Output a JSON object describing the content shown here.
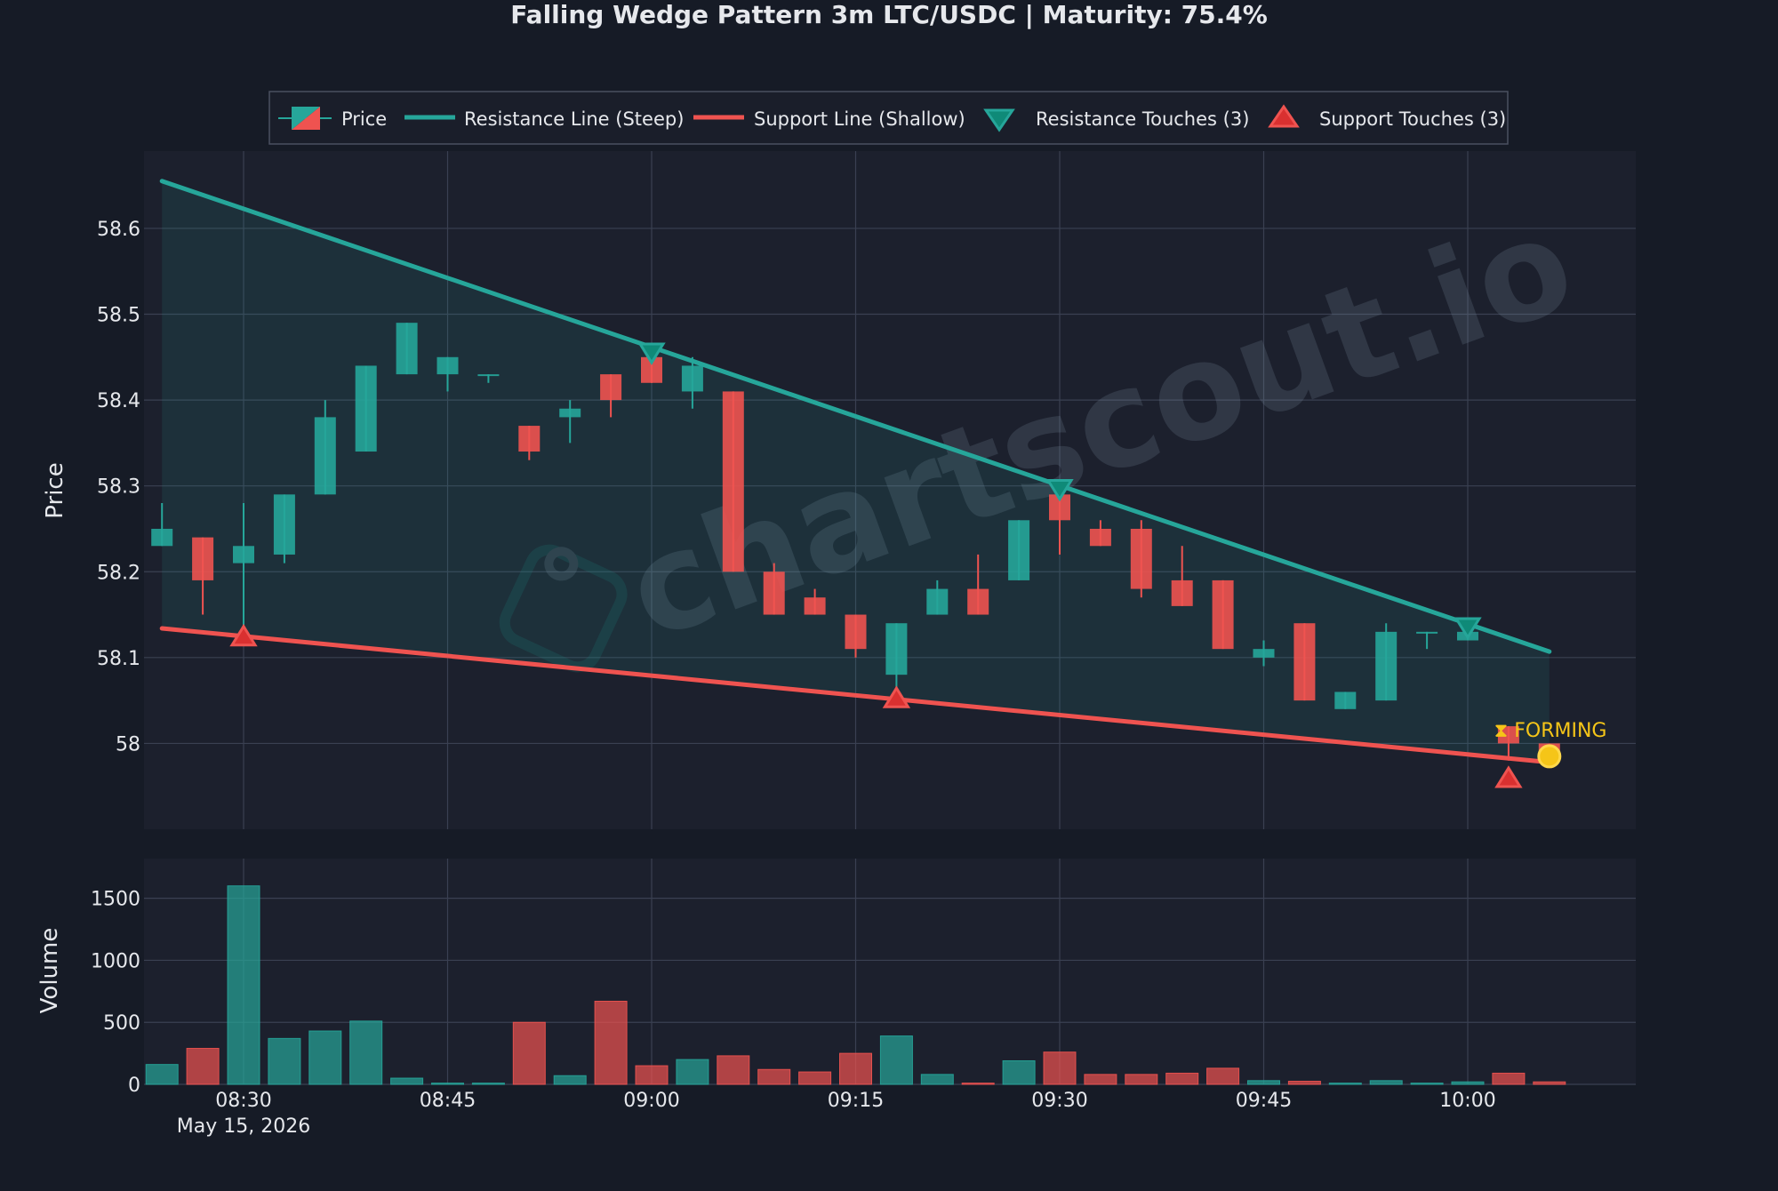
{
  "title": "Falling Wedge Pattern 3m LTC/USDC | Maturity: 75.4%",
  "watermark": "chartscout.io",
  "status_label": "⧗ FORMING",
  "colors": {
    "background": "#161b26",
    "panel": "#1c202d",
    "bull": "#26a69a",
    "bear": "#ef5350",
    "resistance": "#26a69a",
    "support": "#ef5350",
    "marker": "#f5c518",
    "text": "#e6e8ec",
    "grid": "#3a4052"
  },
  "legend": {
    "placement": "top-center",
    "items": [
      {
        "label": "Price",
        "icon": "candlestick-icon"
      },
      {
        "label": "Resistance Line (Steep)",
        "icon": "teal-line-icon"
      },
      {
        "label": "Support Line (Shallow)",
        "icon": "red-line-icon"
      },
      {
        "label": "Resistance Touches (3)",
        "icon": "down-triangle-icon"
      },
      {
        "label": "Support Touches (3)",
        "icon": "up-triangle-icon"
      }
    ]
  },
  "chart_data": [
    {
      "type": "candlestick",
      "title": "Falling Wedge Pattern 3m LTC/USDC | Maturity: 75.4%",
      "ylabel": "Price",
      "ylim": [
        57.9,
        58.69
      ],
      "yticks": [
        {
          "value": 58.6,
          "label": "58.6"
        },
        {
          "value": 58.5,
          "label": "58.5"
        },
        {
          "value": 58.4,
          "label": "58.4"
        },
        {
          "value": 58.3,
          "label": "58.3"
        },
        {
          "value": 58.2,
          "label": "58.2"
        },
        {
          "value": 58.1,
          "label": "58.1"
        },
        {
          "value": 58.0,
          "label": "58"
        }
      ],
      "grid": true,
      "candles": [
        {
          "time": "08:24",
          "open": 58.23,
          "high": 58.28,
          "low": 58.23,
          "close": 58.25
        },
        {
          "time": "08:27",
          "open": 58.24,
          "high": 58.24,
          "low": 58.15,
          "close": 58.19
        },
        {
          "time": "08:30",
          "open": 58.21,
          "high": 58.28,
          "low": 58.12,
          "close": 58.23
        },
        {
          "time": "08:33",
          "open": 58.22,
          "high": 58.29,
          "low": 58.21,
          "close": 58.29
        },
        {
          "time": "08:36",
          "open": 58.29,
          "high": 58.4,
          "low": 58.29,
          "close": 58.38
        },
        {
          "time": "08:39",
          "open": 58.34,
          "high": 58.44,
          "low": 58.34,
          "close": 58.44
        },
        {
          "time": "08:42",
          "open": 58.43,
          "high": 58.49,
          "low": 58.43,
          "close": 58.49
        },
        {
          "time": "08:45",
          "open": 58.43,
          "high": 58.45,
          "low": 58.41,
          "close": 58.45
        },
        {
          "time": "08:48",
          "open": 58.43,
          "high": 58.43,
          "low": 58.42,
          "close": 58.43
        },
        {
          "time": "08:51",
          "open": 58.37,
          "high": 58.37,
          "low": 58.33,
          "close": 58.34
        },
        {
          "time": "08:54",
          "open": 58.38,
          "high": 58.4,
          "low": 58.35,
          "close": 58.39
        },
        {
          "time": "08:57",
          "open": 58.43,
          "high": 58.43,
          "low": 58.38,
          "close": 58.4
        },
        {
          "time": "09:00",
          "open": 58.45,
          "high": 58.45,
          "low": 58.42,
          "close": 58.42
        },
        {
          "time": "09:03",
          "open": 58.41,
          "high": 58.45,
          "low": 58.39,
          "close": 58.44
        },
        {
          "time": "09:06",
          "open": 58.41,
          "high": 58.41,
          "low": 58.2,
          "close": 58.2
        },
        {
          "time": "09:09",
          "open": 58.2,
          "high": 58.21,
          "low": 58.15,
          "close": 58.15
        },
        {
          "time": "09:12",
          "open": 58.17,
          "high": 58.18,
          "low": 58.15,
          "close": 58.15
        },
        {
          "time": "09:15",
          "open": 58.15,
          "high": 58.15,
          "low": 58.1,
          "close": 58.11
        },
        {
          "time": "09:18",
          "open": 58.08,
          "high": 58.14,
          "low": 58.05,
          "close": 58.14
        },
        {
          "time": "09:21",
          "open": 58.15,
          "high": 58.19,
          "low": 58.15,
          "close": 58.18
        },
        {
          "time": "09:24",
          "open": 58.18,
          "high": 58.22,
          "low": 58.15,
          "close": 58.15
        },
        {
          "time": "09:27",
          "open": 58.19,
          "high": 58.26,
          "low": 58.19,
          "close": 58.26
        },
        {
          "time": "09:30",
          "open": 58.29,
          "high": 58.29,
          "low": 58.22,
          "close": 58.26
        },
        {
          "time": "09:33",
          "open": 58.25,
          "high": 58.26,
          "low": 58.23,
          "close": 58.23
        },
        {
          "time": "09:36",
          "open": 58.25,
          "high": 58.26,
          "low": 58.17,
          "close": 58.18
        },
        {
          "time": "09:39",
          "open": 58.19,
          "high": 58.23,
          "low": 58.16,
          "close": 58.16
        },
        {
          "time": "09:42",
          "open": 58.19,
          "high": 58.19,
          "low": 58.11,
          "close": 58.11
        },
        {
          "time": "09:45",
          "open": 58.1,
          "high": 58.12,
          "low": 58.09,
          "close": 58.11
        },
        {
          "time": "09:48",
          "open": 58.14,
          "high": 58.14,
          "low": 58.05,
          "close": 58.05
        },
        {
          "time": "09:51",
          "open": 58.04,
          "high": 58.06,
          "low": 58.04,
          "close": 58.06
        },
        {
          "time": "09:54",
          "open": 58.05,
          "high": 58.14,
          "low": 58.05,
          "close": 58.13
        },
        {
          "time": "09:57",
          "open": 58.13,
          "high": 58.13,
          "low": 58.11,
          "close": 58.13
        },
        {
          "time": "10:00",
          "open": 58.12,
          "high": 58.13,
          "low": 58.12,
          "close": 58.13
        },
        {
          "time": "10:03",
          "open": 58.02,
          "high": 58.02,
          "low": 57.98,
          "close": 58.0
        },
        {
          "time": "10:06",
          "open": 58.0,
          "high": 58.0,
          "low": 57.99,
          "close": 57.99
        }
      ],
      "resistance_line": {
        "name": "Resistance Line (Steep)",
        "start": {
          "time": "08:24",
          "price": 58.655
        },
        "end": {
          "time": "10:06",
          "price": 58.107
        }
      },
      "support_line": {
        "name": "Support Line (Shallow)",
        "start": {
          "time": "08:24",
          "price": 58.134
        },
        "end": {
          "time": "10:06",
          "price": 57.978
        }
      },
      "resistance_touches": [
        {
          "time": "09:00",
          "price": 58.455
        },
        {
          "time": "09:30",
          "price": 58.296
        },
        {
          "time": "10:00",
          "price": 58.135
        }
      ],
      "support_touches": [
        {
          "time": "08:30",
          "price": 58.125
        },
        {
          "time": "09:18",
          "price": 58.053
        },
        {
          "time": "10:03",
          "price": 57.96
        }
      ],
      "current_marker": {
        "time": "10:06",
        "price": 57.985,
        "label": "FORMING"
      }
    },
    {
      "type": "bar",
      "ylabel": "Volume",
      "ylim": [
        0,
        1820
      ],
      "yticks": [
        {
          "value": 1500,
          "label": "1500"
        },
        {
          "value": 1000,
          "label": "1000"
        },
        {
          "value": 500,
          "label": "500"
        },
        {
          "value": 0,
          "label": "0"
        }
      ],
      "grid": true,
      "volumes": [
        160,
        290,
        1600,
        370,
        430,
        510,
        50,
        10,
        10,
        500,
        70,
        670,
        150,
        200,
        230,
        120,
        100,
        250,
        390,
        80,
        10,
        190,
        260,
        80,
        80,
        90,
        130,
        30,
        25,
        10,
        30,
        10,
        20,
        90,
        20
      ]
    }
  ],
  "x_axis": {
    "ticks": [
      {
        "time": "08:30",
        "label": "08:30"
      },
      {
        "time": "08:45",
        "label": "08:45"
      },
      {
        "time": "09:00",
        "label": "09:00"
      },
      {
        "time": "09:15",
        "label": "09:15"
      },
      {
        "time": "09:30",
        "label": "09:30"
      },
      {
        "time": "09:45",
        "label": "09:45"
      },
      {
        "time": "10:00",
        "label": "10:00"
      }
    ],
    "date_label": "May 15, 2026"
  }
}
